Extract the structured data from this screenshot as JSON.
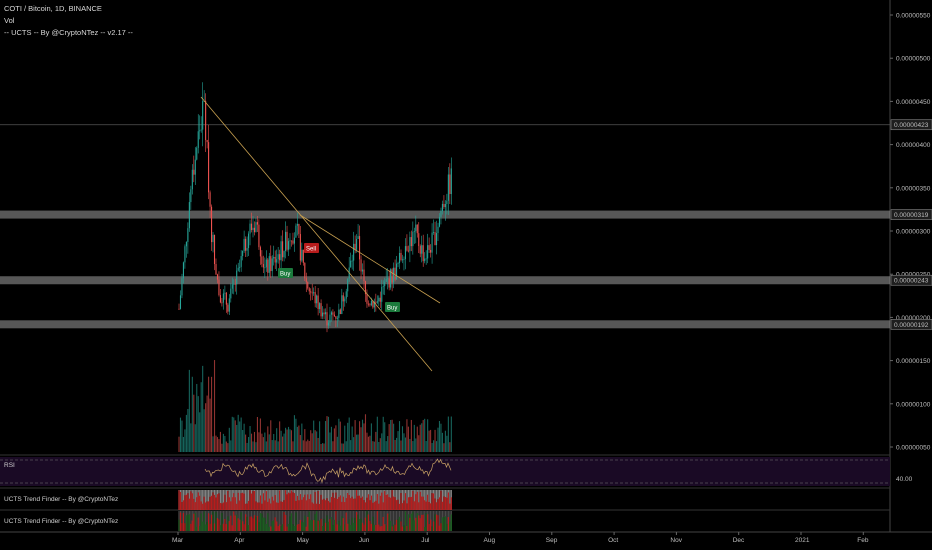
{
  "header": {
    "symbol_line": "COTI / Bitcoin, 1D, BINANCE",
    "vol_label": "Vol",
    "indicator_line": "-- UCTS -- By @CryptoNTez -- v2.17 --"
  },
  "panes": {
    "rsi_label": "RSI",
    "rsi_value_label": "40.00",
    "trend1_label": "UCTS Trend Finder -- By @CryptoNTez",
    "trend2_label": "UCTS Trend Finder -- By @CryptoNTez"
  },
  "price_axis": {
    "ticks": [
      "0.00000550",
      "0.00000500",
      "0.00000450",
      "0.00000400",
      "0.00000350",
      "0.00000300",
      "0.00000250",
      "0.00000200",
      "0.00000150",
      "0.00000100",
      "0.00000050"
    ],
    "highlighted": [
      "0.00000423",
      "0.00000319",
      "0.00000243",
      "0.00000192"
    ]
  },
  "time_axis": {
    "labels": [
      "Mar",
      "Apr",
      "May",
      "Jun",
      "Jul",
      "Aug",
      "Sep",
      "Oct",
      "Nov",
      "Dec",
      "2021",
      "Feb"
    ]
  },
  "signals": [
    {
      "label": "Sell",
      "color": "#b71c1c"
    },
    {
      "label": "Buy",
      "color": "#1b7a3c"
    },
    {
      "label": "Buy",
      "color": "#1b7a3c"
    }
  ],
  "colors": {
    "up": "#26a69a",
    "down": "#ef5350",
    "zone": "#9e9e9e",
    "rsi_bg": "#1a0a25",
    "rsi_line": "#c8a265",
    "trend": "#c8a050"
  },
  "chart_data": {
    "type": "candlestick",
    "title": "COTI / Bitcoin, 1D, BINANCE",
    "x_range": [
      "2020-03",
      "2021-02"
    ],
    "y_range": [
      0.0,
      5.6e-06
    ],
    "support_resistance_zones": [
      3.19e-06,
      2.43e-06,
      1.92e-06
    ],
    "price_line": 4.23e-06,
    "monthly_approx_close": [
      {
        "month": "Mar",
        "low": 2e-06,
        "high": 4.55e-06,
        "close": 2.5e-06
      },
      {
        "month": "Apr",
        "low": 2.05e-06,
        "high": 3.2e-06,
        "close": 2.7e-06
      },
      {
        "month": "May",
        "low": 1.9e-06,
        "high": 3.1e-06,
        "close": 2e-06
      },
      {
        "month": "Jun",
        "low": 2.1e-06,
        "high": 3e-06,
        "close": 2.9e-06
      },
      {
        "month": "Jul",
        "low": 2.6e-06,
        "high": 3.65e-06,
        "close": 3.6e-06
      }
    ]
  }
}
